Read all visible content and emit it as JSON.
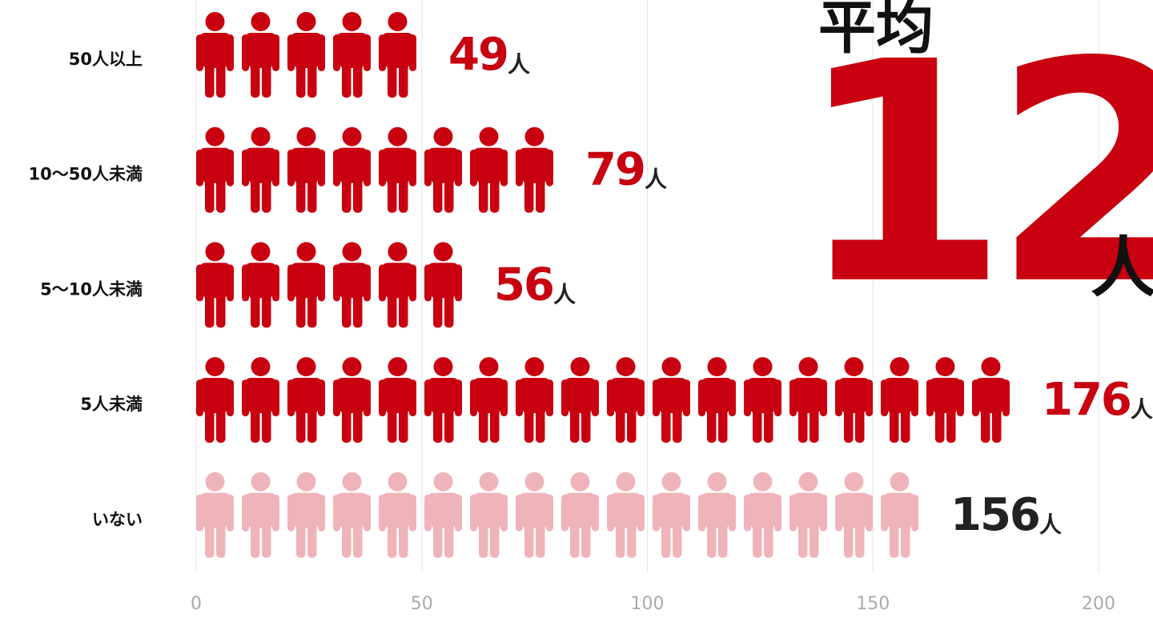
{
  "chart_data": {
    "type": "pictogram",
    "categories": [
      "50人以上",
      "10〜50人未満",
      "5〜10人未満",
      "5人未満",
      "いない"
    ],
    "values": [
      49,
      79,
      56,
      176,
      156
    ],
    "unit": "人",
    "colors": [
      "#c8000f",
      "#c8000f",
      "#c8000f",
      "#c8000f",
      "#efb4b9"
    ],
    "label_colors": [
      "#c8000f",
      "#c8000f",
      "#c8000f",
      "#c8000f",
      "#222222"
    ],
    "xlim": [
      0,
      200
    ],
    "xticks": [
      0,
      50,
      100,
      150,
      200
    ],
    "grid": true,
    "average": {
      "label": "平均",
      "value": 12
    }
  }
}
